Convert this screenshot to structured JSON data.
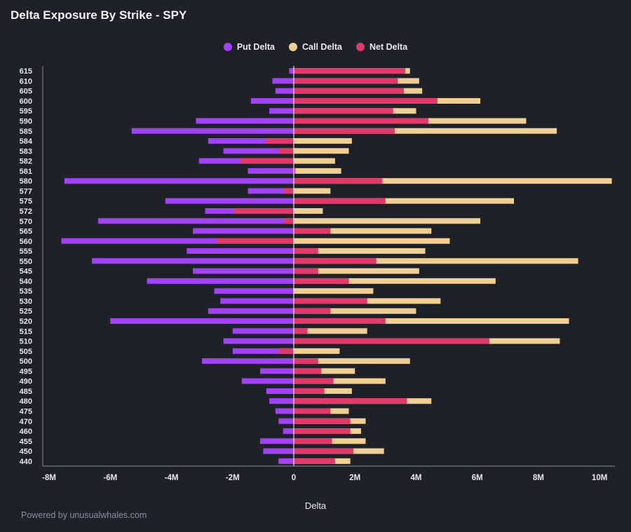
{
  "title": "Delta Exposure By Strike - SPY",
  "footer": "Powered by unusualwhales.com",
  "colors": {
    "background": "#1f2129",
    "put": "#a142f4",
    "call": "#f0cf94",
    "net": "#e0396a"
  },
  "chart_data": {
    "type": "bar",
    "orientation": "horizontal",
    "xlabel": "Delta",
    "ylabel": "",
    "xlim": [
      -8000000,
      10500000
    ],
    "xticks": [
      -8000000,
      -6000000,
      -4000000,
      -2000000,
      0,
      2000000,
      4000000,
      6000000,
      8000000,
      10000000
    ],
    "xtick_labels": [
      "-8M",
      "-6M",
      "-4M",
      "-2M",
      "0",
      "2M",
      "4M",
      "6M",
      "8M",
      "10M"
    ],
    "grid": false,
    "legend_position": "top-center",
    "categories": [
      "615",
      "610",
      "605",
      "600",
      "595",
      "590",
      "585",
      "584",
      "583",
      "582",
      "581",
      "580",
      "577",
      "575",
      "572",
      "570",
      "565",
      "560",
      "555",
      "550",
      "545",
      "540",
      "535",
      "530",
      "525",
      "520",
      "515",
      "510",
      "505",
      "500",
      "495",
      "490",
      "485",
      "480",
      "475",
      "470",
      "460",
      "455",
      "450",
      "440"
    ],
    "series": [
      {
        "name": "Put Delta",
        "color": "#a142f4",
        "values": [
          -150000,
          -700000,
          -600000,
          -1400000,
          -800000,
          -3200000,
          -5300000,
          -2800000,
          -2300000,
          -3100000,
          -1500000,
          -7500000,
          -1500000,
          -4200000,
          -2900000,
          -6400000,
          -3300000,
          -7600000,
          -3500000,
          -6600000,
          -3300000,
          -4800000,
          -2600000,
          -2400000,
          -2800000,
          -6000000,
          -2000000,
          -2300000,
          -2000000,
          -3000000,
          -1100000,
          -1700000,
          -900000,
          -800000,
          -600000,
          -500000,
          -350000,
          -1100000,
          -1000000,
          -500000
        ]
      },
      {
        "name": "Call Delta",
        "color": "#f0cf94",
        "values": [
          3800000,
          4100000,
          4200000,
          6100000,
          4000000,
          7600000,
          8600000,
          1900000,
          1800000,
          1350000,
          1550000,
          10400000,
          1200000,
          7200000,
          950000,
          6100000,
          4500000,
          5100000,
          4300000,
          9300000,
          4100000,
          6600000,
          2600000,
          4800000,
          4000000,
          9000000,
          2400000,
          8700000,
          1500000,
          3800000,
          2000000,
          3000000,
          1900000,
          4500000,
          1800000,
          2350000,
          2200000,
          2350000,
          2950000,
          1850000
        ]
      },
      {
        "name": "Net Delta",
        "color": "#e0396a",
        "values": [
          3650000,
          3400000,
          3600000,
          4700000,
          3250000,
          4400000,
          3300000,
          -900000,
          -500000,
          -1750000,
          50000,
          2900000,
          -300000,
          3000000,
          -1950000,
          -300000,
          1200000,
          -2500000,
          800000,
          2700000,
          800000,
          1800000,
          0,
          2400000,
          1200000,
          3000000,
          450000,
          6400000,
          -500000,
          800000,
          900000,
          1300000,
          1000000,
          3700000,
          1200000,
          1850000,
          1850000,
          1250000,
          1950000,
          1350000
        ]
      }
    ]
  }
}
